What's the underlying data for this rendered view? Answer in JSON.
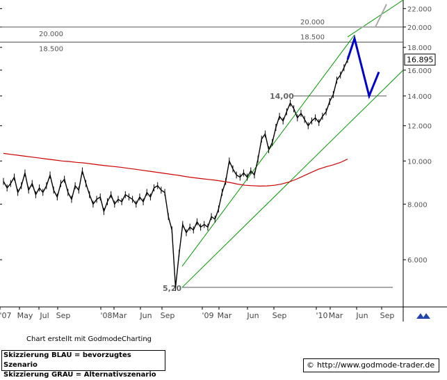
{
  "chart_data": {
    "type": "line",
    "title": "",
    "price_label": "16.895",
    "x_tick_labels": [
      "'07",
      "May",
      "Jul",
      "Sep",
      "'08",
      "Mar",
      "Jun",
      "Sep",
      "'09",
      "Mar",
      "Jun",
      "Sep",
      "'10",
      "Mar",
      "Jun",
      "Sep"
    ],
    "y_ticks": [
      22.0,
      20.0,
      18.0,
      16.0,
      14.0,
      12.0,
      10.0,
      8.0,
      6.0
    ],
    "y_tick_labels": [
      "22.000",
      "20.000",
      "18.000",
      "16.000",
      "14.000",
      "12.000",
      "10.000",
      "8.000",
      "6.000"
    ],
    "y_scale": "log",
    "ylim": [
      4.7,
      23.0
    ],
    "horizontal_levels": [
      {
        "value": 20.0,
        "label": "20.000",
        "label_left": "20.000"
      },
      {
        "value": 18.5,
        "label": "18.500",
        "label_left": "18.500"
      }
    ],
    "annotations": [
      {
        "text": "14,00",
        "value": 14.0
      },
      {
        "text": "5,20",
        "value": 5.2
      }
    ],
    "series": [
      {
        "name": "",
        "color": "#000000",
        "values": [
          9.0,
          8.7,
          8.9,
          9.2,
          8.5,
          8.8,
          9.4,
          8.6,
          8.9,
          8.4,
          8.7,
          8.5,
          8.8,
          9.3,
          8.6,
          8.3,
          8.9,
          9.1,
          8.5,
          8.2,
          8.8,
          8.6,
          9.5,
          8.9,
          8.4,
          8.0,
          8.2,
          8.3,
          7.7,
          8.1,
          8.4,
          8.0,
          8.2,
          8.1,
          8.4,
          8.3,
          8.2,
          8.0,
          8.3,
          8.1,
          8.5,
          8.3,
          8.7,
          8.8,
          8.6,
          8.5,
          7.5,
          7.0,
          5.2,
          6.2,
          7.2,
          6.9,
          7.1,
          7.0,
          7.3,
          7.1,
          7.2,
          7.1,
          7.5,
          7.4,
          7.8,
          8.5,
          9.0,
          10.0,
          9.6,
          9.3,
          9.2,
          9.4,
          9.2,
          9.5,
          9.3,
          10.1,
          11.2,
          11.5,
          10.6,
          11.0,
          11.9,
          12.6,
          12.3,
          12.9,
          13.5,
          13.1,
          12.5,
          12.8,
          12.4,
          12.0,
          12.3,
          12.5,
          12.2,
          12.6,
          12.9,
          13.6,
          14.1,
          15.2,
          15.6,
          16.2,
          16.895
        ]
      },
      {
        "name": "",
        "color": "#cc0000",
        "values": [
          10.4,
          10.35,
          10.3,
          10.25,
          10.2,
          10.15,
          10.1,
          10.05,
          10.0,
          9.97,
          9.93,
          9.9,
          9.85,
          9.8,
          9.76,
          9.72,
          9.68,
          9.63,
          9.58,
          9.53,
          9.48,
          9.43,
          9.38,
          9.33,
          9.28,
          9.22,
          9.17,
          9.13,
          9.09,
          9.05,
          9.0,
          8.94,
          8.87,
          8.82,
          8.8,
          8.78,
          8.79,
          8.82,
          8.88,
          8.97,
          9.1,
          9.26,
          9.42,
          9.58,
          9.7,
          9.8,
          9.92,
          10.1
        ]
      },
      {
        "name": "",
        "color": "#0000cc",
        "values": [
          16.895,
          18.85,
          14.0,
          15.85
        ]
      },
      {
        "name": "",
        "color": "#a9a9a9",
        "values": [
          20.0,
          20.0,
          22.5
        ]
      }
    ],
    "channel": {
      "color": "#009900",
      "upper": [
        5.8,
        19.2
      ],
      "lower": [
        5.2,
        16.0
      ]
    }
  },
  "footer": {
    "credit": "Chart erstellt mit GodmodeCharting",
    "legend_line1": "Skizzierung BLAU = bevorzugtes Szenario",
    "legend_line2": "Skizzierung GRAU = Alternativszenario",
    "copyright": "©",
    "url": "http://www.godmode-trader.de"
  }
}
